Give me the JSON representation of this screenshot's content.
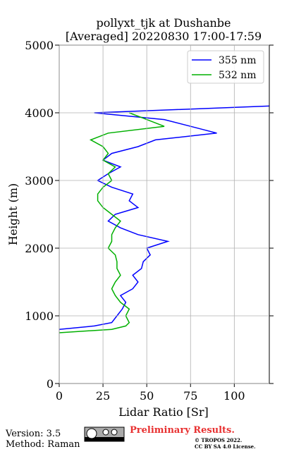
{
  "chart_data": {
    "type": "line",
    "title": "pollyxt_tjk at Dushanbe",
    "subtitle": "[Averaged] 20220830 17:00-17:59",
    "x_label": "Lidar Ratio [Sr]",
    "y_label": "Height (m)",
    "heights": [
      750,
      800,
      850,
      900,
      1000,
      1100,
      1200,
      1300,
      1400,
      1500,
      1600,
      1700,
      1800,
      1900,
      2000,
      2100,
      2200,
      2300,
      2400,
      2500,
      2600,
      2700,
      2800,
      2900,
      3000,
      3100,
      3200,
      3300,
      3400,
      3500,
      3600,
      3700,
      3800,
      3900,
      4000,
      4100
    ],
    "series": [
      {
        "name": "355 nm",
        "color": "#0000ff",
        "values": [
          null,
          0,
          20,
          30,
          33,
          36,
          38,
          35,
          42,
          45,
          42,
          47,
          48,
          52,
          50,
          62,
          45,
          35,
          28,
          32,
          45,
          40,
          42,
          30,
          22,
          28,
          35,
          25,
          30,
          45,
          55,
          90,
          75,
          60,
          20,
          120
        ]
      },
      {
        "name": "532 nm",
        "color": "#00b000",
        "values": [
          0,
          30,
          38,
          40,
          38,
          40,
          35,
          32,
          30,
          32,
          35,
          33,
          33,
          32,
          28,
          30,
          30,
          32,
          35,
          30,
          25,
          22,
          22,
          25,
          30,
          28,
          32,
          25,
          28,
          25,
          18,
          28,
          60,
          50,
          40,
          null
        ]
      }
    ],
    "xlim": [
      0,
      120
    ],
    "xticks": [
      0,
      25,
      50,
      75,
      100
    ],
    "ylim": [
      0,
      5000
    ],
    "yticks": [
      0,
      1000,
      2000,
      3000,
      4000,
      5000
    ],
    "grid": true,
    "legend": "upper right"
  },
  "footer": {
    "version": "Version: 3.5",
    "method": "Method: Raman",
    "notice": "Preliminary Results.",
    "copyright": "© TROPOS 2022.",
    "license": "CC BY SA 4.0 License."
  }
}
